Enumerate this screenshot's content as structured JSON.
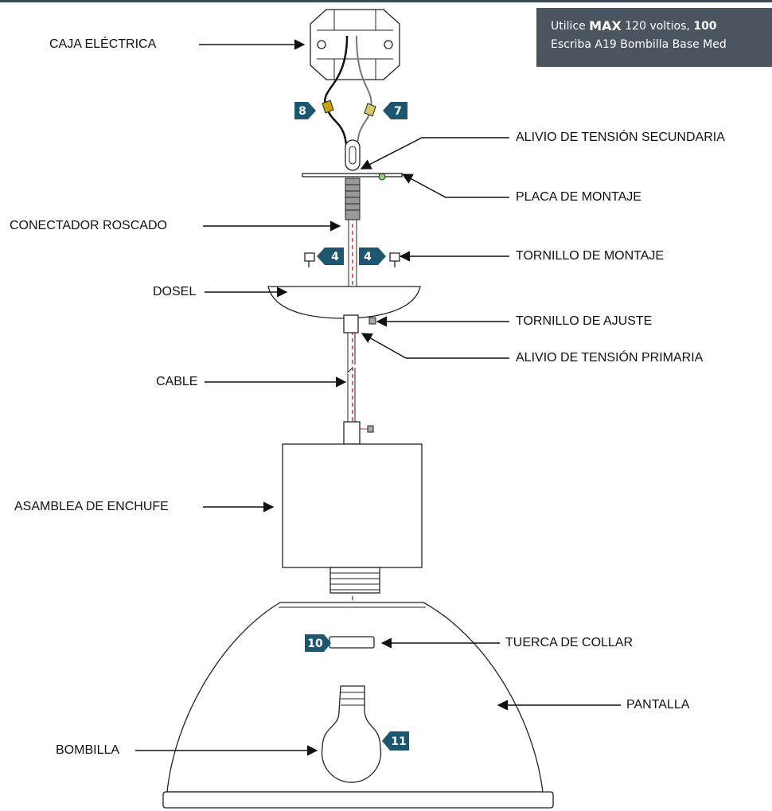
{
  "note": {
    "line1": [
      "Utilice",
      "MAX",
      "120 voltios,",
      "100"
    ],
    "line2": "Escriba A19 Bombilla Base Med"
  },
  "labels": [
    "CAJA ELÉCTRICA",
    "ALIVIO DE TENSIÓN SECUNDARIA",
    "PLACA DE MONTAJE",
    "CONECTADOR ROSCADO",
    "TORNILLO DE MONTAJE",
    "DOSEL",
    "TORNILLO DE AJUSTE",
    "ALIVIO DE TENSIÓN PRIMARIA",
    "CABLE",
    "ASAMBLEA DE ENCHUFE",
    "TUERCA DE COLLAR",
    "PANTALLA",
    "BOMBILLA"
  ],
  "badges": [
    "8",
    "7",
    "4",
    "4",
    "10",
    "11"
  ]
}
